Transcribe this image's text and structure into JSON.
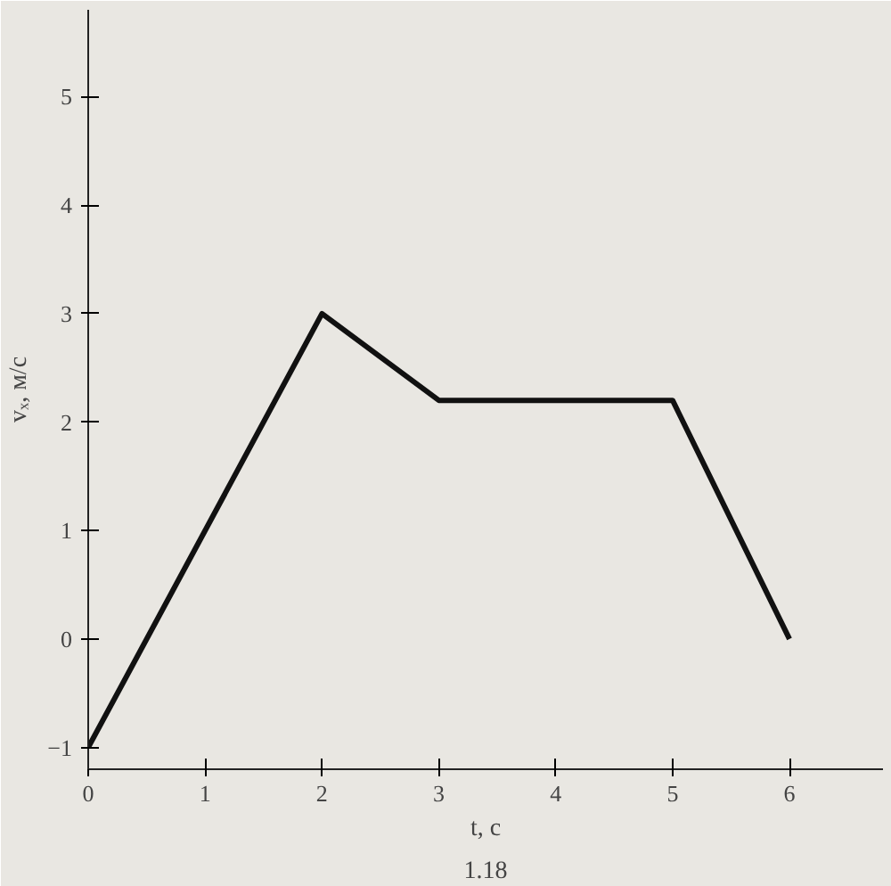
{
  "chart_data": {
    "type": "line",
    "xlabel": "t, с",
    "ylabel": "vₓ, м/с",
    "x": [
      0,
      2,
      3,
      5,
      6
    ],
    "series": [
      {
        "color": "#111111",
        "values": [
          -1,
          3,
          2.2,
          2.2,
          0
        ]
      }
    ],
    "xlim": [
      0,
      6.8
    ],
    "ylim": [
      -1.2,
      5.8
    ],
    "xticks": [
      0,
      1,
      2,
      3,
      4,
      5,
      6
    ],
    "yticks": [
      -1,
      0,
      1,
      2,
      3,
      4,
      5
    ],
    "marker": "none",
    "line_style": "solid",
    "annotations": [
      "1.18"
    ]
  }
}
